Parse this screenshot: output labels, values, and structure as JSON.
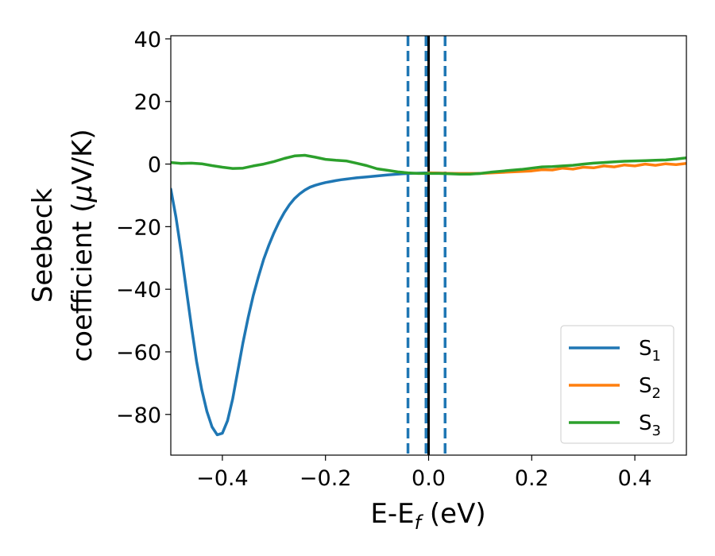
{
  "chart_data": {
    "type": "line",
    "xlabel": "E-E",
    "xlabel_sub": "f",
    "xlabel_unit": " (eV)",
    "ylabel_line1": "Seebeck",
    "ylabel_line2": "coefficient  (",
    "ylabel_mu": "μ",
    "ylabel_unit": "V/K)",
    "xlim": [
      -0.5,
      0.5
    ],
    "ylim": [
      -93,
      41
    ],
    "x_ticks": [
      -0.4,
      -0.2,
      0.0,
      0.2,
      0.4
    ],
    "x_tick_labels": [
      "−0.4",
      "−0.2",
      "0.0",
      "0.2",
      "0.4"
    ],
    "y_ticks": [
      -80,
      -60,
      -40,
      -20,
      0,
      20,
      40
    ],
    "y_tick_labels": [
      "−80",
      "−60",
      "−40",
      "−20",
      "0",
      "20",
      "40"
    ],
    "grid": false,
    "legend_position": "lower-right",
    "vlines": [
      {
        "x": -0.04,
        "style": "dashed",
        "color": "#1f77b4"
      },
      {
        "x": -0.005,
        "style": "dashed",
        "color": "#1f77b4"
      },
      {
        "x": 0.0,
        "style": "solid",
        "color": "#000000"
      },
      {
        "x": 0.032,
        "style": "dashed",
        "color": "#1f77b4"
      }
    ],
    "series": [
      {
        "name": "S",
        "sub": "1",
        "color": "#1f77b4",
        "x": [
          -0.5,
          -0.49,
          -0.48,
          -0.47,
          -0.46,
          -0.45,
          -0.44,
          -0.43,
          -0.42,
          -0.41,
          -0.4,
          -0.39,
          -0.38,
          -0.37,
          -0.36,
          -0.35,
          -0.34,
          -0.33,
          -0.32,
          -0.31,
          -0.3,
          -0.29,
          -0.28,
          -0.27,
          -0.26,
          -0.25,
          -0.24,
          -0.23,
          -0.22,
          -0.21,
          -0.2,
          -0.19,
          -0.18,
          -0.17,
          -0.16,
          -0.15,
          -0.14,
          -0.12,
          -0.1,
          -0.08,
          -0.06,
          -0.04,
          -0.02,
          0.0,
          0.02,
          0.04,
          0.06,
          0.08,
          0.1
        ],
        "y": [
          -8,
          -17,
          -28,
          -40,
          -52,
          -63,
          -72,
          -79,
          -84,
          -86.5,
          -86,
          -82,
          -75,
          -66,
          -57,
          -49,
          -42,
          -36,
          -30.5,
          -26,
          -22,
          -18.5,
          -15.5,
          -13,
          -11,
          -9.5,
          -8.3,
          -7.4,
          -6.8,
          -6.3,
          -5.9,
          -5.6,
          -5.3,
          -5.0,
          -4.8,
          -4.6,
          -4.4,
          -4.1,
          -3.8,
          -3.5,
          -3.2,
          -3.0,
          -2.9,
          -2.8,
          -2.9,
          -3.0,
          -3.1,
          -3.1,
          -3.0
        ]
      },
      {
        "name": "S",
        "sub": "2",
        "color": "#ff7f0e",
        "x": [
          0.0,
          0.05,
          0.1,
          0.15,
          0.2,
          0.22,
          0.24,
          0.26,
          0.28,
          0.3,
          0.32,
          0.34,
          0.36,
          0.38,
          0.4,
          0.42,
          0.44,
          0.46,
          0.48,
          0.5
        ],
        "y": [
          -2.8,
          -3.0,
          -3.0,
          -2.6,
          -2.2,
          -1.8,
          -1.9,
          -1.3,
          -1.6,
          -1.0,
          -1.2,
          -0.6,
          -0.9,
          -0.3,
          -0.6,
          0.0,
          -0.4,
          0.1,
          -0.2,
          0.2
        ]
      },
      {
        "name": "S",
        "sub": "3",
        "color": "#2ca02c",
        "x": [
          -0.5,
          -0.48,
          -0.46,
          -0.44,
          -0.42,
          -0.4,
          -0.38,
          -0.36,
          -0.34,
          -0.32,
          -0.3,
          -0.28,
          -0.26,
          -0.24,
          -0.22,
          -0.2,
          -0.18,
          -0.16,
          -0.14,
          -0.12,
          -0.1,
          -0.08,
          -0.06,
          -0.04,
          -0.02,
          0.0,
          0.02,
          0.04,
          0.06,
          0.08,
          0.1,
          0.12,
          0.14,
          0.16,
          0.18,
          0.2,
          0.22,
          0.24,
          0.26,
          0.28,
          0.3,
          0.32,
          0.34,
          0.36,
          0.38,
          0.4,
          0.42,
          0.44,
          0.46,
          0.48,
          0.5
        ],
        "y": [
          0.5,
          0.2,
          0.3,
          0.1,
          -0.5,
          -1.0,
          -1.4,
          -1.3,
          -0.6,
          0.0,
          0.8,
          1.8,
          2.6,
          2.8,
          2.2,
          1.5,
          1.2,
          1.0,
          0.3,
          -0.5,
          -1.5,
          -2.0,
          -2.5,
          -2.8,
          -3.0,
          -3.0,
          -3.0,
          -3.1,
          -3.2,
          -3.2,
          -3.0,
          -2.6,
          -2.3,
          -2.0,
          -1.7,
          -1.3,
          -0.9,
          -0.8,
          -0.6,
          -0.4,
          0.0,
          0.3,
          0.5,
          0.7,
          0.9,
          1.0,
          1.1,
          1.2,
          1.3,
          1.6,
          2.0
        ]
      }
    ]
  }
}
